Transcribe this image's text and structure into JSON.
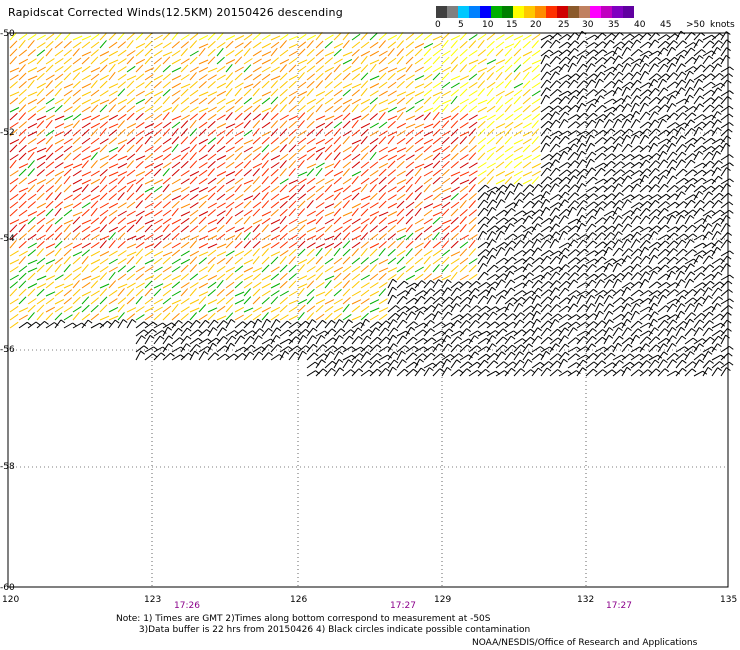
{
  "title": "Rapidscat Corrected Winds(12.5KM) 20150426 descending",
  "legend": {
    "colors": [
      "#404040",
      "#808080",
      "#00c8ff",
      "#0080ff",
      "#0000ff",
      "#00b000",
      "#008000",
      "#ffff00",
      "#ffc800",
      "#ff8c00",
      "#ff3000",
      "#d00000",
      "#8b5a2b",
      "#c08060",
      "#ff00ff",
      "#c000c0",
      "#8000c0",
      "#6000a0"
    ],
    "labels": [
      "0",
      "5",
      "10",
      "15",
      "20",
      "25",
      "30",
      "35",
      "40",
      "45",
      ">50",
      "knots"
    ]
  },
  "axes": {
    "lon_labels": [
      "120",
      "123",
      "126",
      "129",
      "132",
      "135"
    ],
    "lat_labels": [
      "-50",
      "-52",
      "-54",
      "-56",
      "-58",
      "-60"
    ]
  },
  "times": [
    "17:26",
    "17:27",
    "17:27"
  ],
  "notes": [
    "Note: 1) Times are GMT 2)Times along bottom correspond to measurement at -50S",
    "        3)Data buffer is 22 hrs from 20150426 4) Black circles indicate possible contamination"
  ],
  "credit": "NOAA/NESDIS/Office of Research and Applications"
}
